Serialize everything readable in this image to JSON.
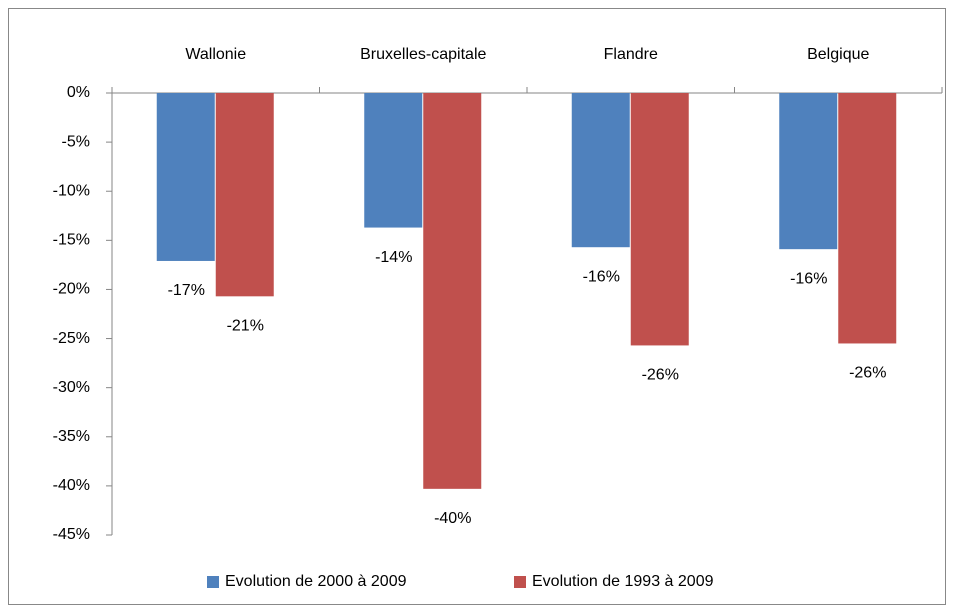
{
  "chart_data": {
    "type": "bar",
    "categories": [
      "Wallonie",
      "Bruxelles-capitale",
      "Flandre",
      "Belgique"
    ],
    "series": [
      {
        "name": "Evolution de 2000 à 2009",
        "color": "#4f81bd",
        "values": [
          -17.1,
          -13.7,
          -15.7,
          -15.9
        ],
        "value_labels": [
          "-17%",
          "-14%",
          "-16%",
          "-16%"
        ]
      },
      {
        "name": "Evolution de 1993 à 2009",
        "color": "#c0504d",
        "values": [
          -20.7,
          -40.3,
          -25.7,
          -25.5
        ],
        "value_labels": [
          "-21%",
          "-40%",
          "-26%",
          "-26%"
        ]
      }
    ],
    "ylim": [
      -45,
      0
    ],
    "yticks": [
      {
        "value": 0,
        "label": "0%"
      },
      {
        "value": -5,
        "label": "-5%"
      },
      {
        "value": -10,
        "label": "-10%"
      },
      {
        "value": -15,
        "label": "-15%"
      },
      {
        "value": -20,
        "label": "-20%"
      },
      {
        "value": -25,
        "label": "-25%"
      },
      {
        "value": -30,
        "label": "-30%"
      },
      {
        "value": -35,
        "label": "-35%"
      },
      {
        "value": -40,
        "label": "-40%"
      },
      {
        "value": -45,
        "label": "-45%"
      }
    ],
    "legend": "bottom"
  }
}
